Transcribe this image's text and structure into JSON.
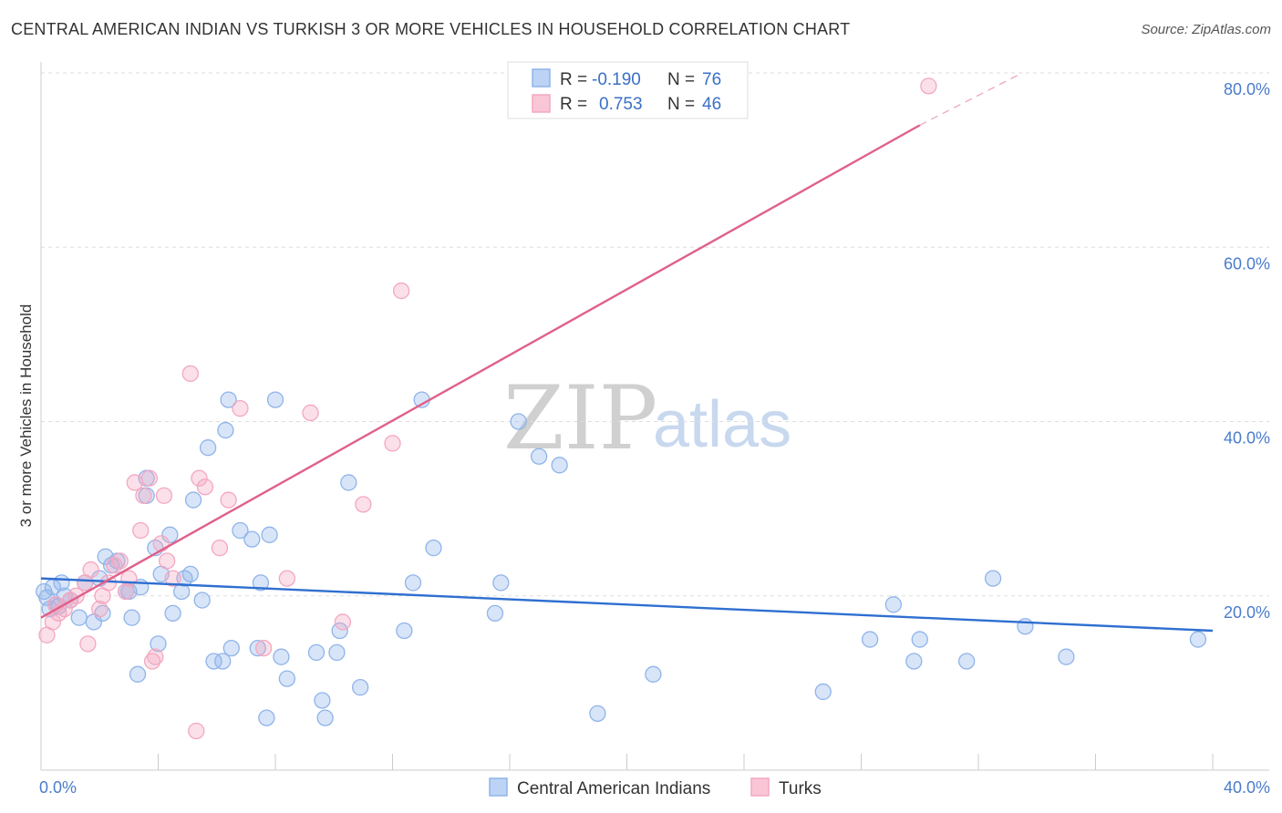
{
  "title": "CENTRAL AMERICAN INDIAN VS TURKISH 3 OR MORE VEHICLES IN HOUSEHOLD CORRELATION CHART",
  "source": "Source: ZipAtlas.com",
  "watermark": {
    "zip": "ZIP",
    "atlas": "atlas"
  },
  "legend": {
    "r_label": "R =",
    "n_label": "N =",
    "series": [
      {
        "name": "Central American Indians",
        "r": "-0.190",
        "n": "76"
      },
      {
        "name": "Turks",
        "r": "0.753",
        "n": "46"
      }
    ]
  },
  "chart_data": {
    "type": "scatter",
    "title": "CENTRAL AMERICAN INDIAN VS TURKISH 3 OR MORE VEHICLES IN HOUSEHOLD CORRELATION CHART",
    "xlabel": "",
    "ylabel": "3 or more Vehicles in Household",
    "xlim": [
      0,
      40
    ],
    "ylim": [
      0,
      80
    ],
    "x_tick_labels": [
      {
        "value": 0,
        "label": "0.0%"
      },
      {
        "value": 40,
        "label": "40.0%"
      }
    ],
    "y_tick_labels": [
      {
        "value": 20,
        "label": "20.0%"
      },
      {
        "value": 40,
        "label": "40.0%"
      },
      {
        "value": 60,
        "label": "60.0%"
      },
      {
        "value": 80,
        "label": "80.0%"
      }
    ],
    "series": [
      {
        "name": "Central American Indians",
        "color": "#8fb4ea",
        "line_color": "#2f6fd0",
        "trend": {
          "x": [
            0,
            40
          ],
          "y": [
            22.0,
            16.0
          ]
        },
        "points": [
          [
            0.1,
            20.5
          ],
          [
            0.2,
            19.8
          ],
          [
            0.3,
            18.5
          ],
          [
            0.4,
            21.0
          ],
          [
            0.5,
            19.0
          ],
          [
            0.6,
            18.8
          ],
          [
            0.7,
            21.5
          ],
          [
            0.8,
            20.0
          ],
          [
            1.0,
            19.5
          ],
          [
            1.3,
            17.5
          ],
          [
            1.5,
            21.5
          ],
          [
            1.8,
            17.0
          ],
          [
            2.0,
            22.0
          ],
          [
            2.1,
            18.0
          ],
          [
            2.2,
            24.5
          ],
          [
            2.4,
            23.5
          ],
          [
            2.6,
            24.0
          ],
          [
            2.9,
            20.5
          ],
          [
            3.0,
            20.5
          ],
          [
            3.1,
            17.5
          ],
          [
            3.3,
            11.0
          ],
          [
            3.4,
            21.0
          ],
          [
            3.6,
            31.5
          ],
          [
            3.6,
            33.5
          ],
          [
            3.9,
            25.5
          ],
          [
            4.0,
            14.5
          ],
          [
            4.1,
            22.5
          ],
          [
            4.4,
            27.0
          ],
          [
            4.5,
            18.0
          ],
          [
            4.8,
            20.5
          ],
          [
            4.9,
            22.0
          ],
          [
            5.1,
            22.5
          ],
          [
            5.2,
            31.0
          ],
          [
            5.5,
            19.5
          ],
          [
            5.7,
            37.0
          ],
          [
            5.9,
            12.5
          ],
          [
            6.2,
            12.5
          ],
          [
            6.3,
            39.0
          ],
          [
            6.4,
            42.5
          ],
          [
            6.5,
            14.0
          ],
          [
            6.8,
            27.5
          ],
          [
            7.2,
            26.5
          ],
          [
            7.4,
            14.0
          ],
          [
            7.5,
            21.5
          ],
          [
            7.7,
            6.0
          ],
          [
            7.8,
            27.0
          ],
          [
            8.0,
            42.5
          ],
          [
            8.2,
            13.0
          ],
          [
            8.4,
            10.5
          ],
          [
            9.4,
            13.5
          ],
          [
            9.6,
            8.0
          ],
          [
            9.7,
            6.0
          ],
          [
            10.1,
            13.5
          ],
          [
            10.2,
            16.0
          ],
          [
            10.5,
            33.0
          ],
          [
            10.9,
            9.5
          ],
          [
            12.4,
            16.0
          ],
          [
            12.7,
            21.5
          ],
          [
            13.0,
            42.5
          ],
          [
            13.4,
            25.5
          ],
          [
            15.5,
            18.0
          ],
          [
            15.7,
            21.5
          ],
          [
            16.3,
            40.0
          ],
          [
            17.0,
            36.0
          ],
          [
            17.7,
            35.0
          ],
          [
            19.0,
            6.5
          ],
          [
            20.9,
            11.0
          ],
          [
            26.7,
            9.0
          ],
          [
            28.3,
            15.0
          ],
          [
            29.1,
            19.0
          ],
          [
            29.8,
            12.5
          ],
          [
            30.0,
            15.0
          ],
          [
            31.6,
            12.5
          ],
          [
            32.5,
            22.0
          ],
          [
            33.6,
            16.5
          ],
          [
            35.0,
            13.0
          ],
          [
            39.5,
            15.0
          ]
        ]
      },
      {
        "name": "Turks",
        "color": "#f4a7c0",
        "line_color": "#e0608a",
        "trend": {
          "x": [
            0,
            30
          ],
          "y": [
            17.5,
            74.0
          ]
        },
        "trend_extension": {
          "x": [
            30,
            33.5
          ],
          "y": [
            74.0,
            80.0
          ]
        },
        "points": [
          [
            0.2,
            15.5
          ],
          [
            0.4,
            17.0
          ],
          [
            0.5,
            19.0
          ],
          [
            0.6,
            18.0
          ],
          [
            0.8,
            18.5
          ],
          [
            1.0,
            19.5
          ],
          [
            1.2,
            20.0
          ],
          [
            1.5,
            21.5
          ],
          [
            1.6,
            14.5
          ],
          [
            1.7,
            23.0
          ],
          [
            2.0,
            18.5
          ],
          [
            2.1,
            20.0
          ],
          [
            2.3,
            21.5
          ],
          [
            2.5,
            23.5
          ],
          [
            2.7,
            24.0
          ],
          [
            2.9,
            20.5
          ],
          [
            3.0,
            22.0
          ],
          [
            3.2,
            33.0
          ],
          [
            3.4,
            27.5
          ],
          [
            3.5,
            31.5
          ],
          [
            3.7,
            33.5
          ],
          [
            3.8,
            12.5
          ],
          [
            3.9,
            13.0
          ],
          [
            4.1,
            26.0
          ],
          [
            4.2,
            31.5
          ],
          [
            4.3,
            24.0
          ],
          [
            4.5,
            22.0
          ],
          [
            5.1,
            45.5
          ],
          [
            5.3,
            4.5
          ],
          [
            5.4,
            33.5
          ],
          [
            5.6,
            32.5
          ],
          [
            6.1,
            25.5
          ],
          [
            6.4,
            31.0
          ],
          [
            6.8,
            41.5
          ],
          [
            7.6,
            14.0
          ],
          [
            8.4,
            22.0
          ],
          [
            9.2,
            41.0
          ],
          [
            10.3,
            17.0
          ],
          [
            11.0,
            30.5
          ],
          [
            12.0,
            37.5
          ],
          [
            12.3,
            55.0
          ],
          [
            30.3,
            78.5
          ]
        ]
      }
    ]
  }
}
